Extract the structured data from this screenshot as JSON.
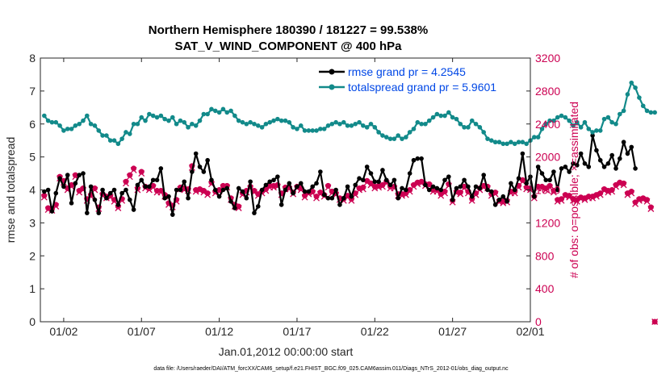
{
  "chart_data": {
    "type": "line",
    "title": "Northern Hemisphere 180390 / 181227 = 99.538%",
    "subtitle": "SAT_V_WIND_COMPONENT @ 400 hPa",
    "xlabel": "Jan.01,2012 00:00:00 start",
    "ylabel_left": "rmse and totalspread",
    "ylabel_right": "# of obs: o=possible; ×=assimilated",
    "xlim": [
      0.5,
      32
    ],
    "ylim_left": [
      0,
      8
    ],
    "ylim_right": [
      0,
      3200
    ],
    "x_ticks": [
      {
        "pos": 2,
        "label": "01/02"
      },
      {
        "pos": 7,
        "label": "01/07"
      },
      {
        "pos": 12,
        "label": "01/12"
      },
      {
        "pos": 17,
        "label": "01/17"
      },
      {
        "pos": 22,
        "label": "01/22"
      },
      {
        "pos": 27,
        "label": "01/27"
      },
      {
        "pos": 32,
        "label": "02/01"
      }
    ],
    "y_ticks_left": [
      "0",
      "1",
      "2",
      "3",
      "4",
      "5",
      "6",
      "7",
      "8"
    ],
    "y_ticks_right": [
      "0",
      "400",
      "800",
      "1200",
      "1600",
      "2000",
      "2400",
      "2800",
      "3200"
    ],
    "legend": [
      {
        "label": "rmse grand pr = 4.2545",
        "color": "#000000"
      },
      {
        "label": "totalspread grand pr = 5.9601",
        "color": "#128a8a"
      }
    ],
    "series": [
      {
        "name": "rmse",
        "axis": "left",
        "color": "#000000",
        "x_start": 0.75,
        "x_step": 0.25,
        "values": [
          3.95,
          4.0,
          3.35,
          3.9,
          4.35,
          4.1,
          4.45,
          3.6,
          4.2,
          4.45,
          4.5,
          3.3,
          4.1,
          3.7,
          3.3,
          4.0,
          3.75,
          3.9,
          4.0,
          3.55,
          3.9,
          4.0,
          3.7,
          3.4,
          4.15,
          4.3,
          4.1,
          4.1,
          4.3,
          4.3,
          4.65,
          3.75,
          3.8,
          3.25,
          4.0,
          4.0,
          4.25,
          3.75,
          4.55,
          5.1,
          4.7,
          4.55,
          4.9,
          4.3,
          4.0,
          3.8,
          4.0,
          4.05,
          3.65,
          3.45,
          4.05,
          3.95,
          3.75,
          4.25,
          3.3,
          3.5,
          4.0,
          4.15,
          4.25,
          4.3,
          4.4,
          3.55,
          4.0,
          4.2,
          3.9,
          4.1,
          4.2,
          3.95,
          3.95,
          4.1,
          4.2,
          4.55,
          3.85,
          3.75,
          3.75,
          4.0,
          3.55,
          3.75,
          4.1,
          3.8,
          4.15,
          4.35,
          4.3,
          4.7,
          4.5,
          4.25,
          4.25,
          4.6,
          4.3,
          4.15,
          4.3,
          3.75,
          4.05,
          4.0,
          4.5,
          4.9,
          4.95,
          4.95,
          4.15,
          4.0,
          4.1,
          4.05,
          4.0,
          4.3,
          4.4,
          3.7,
          4.05,
          4.1,
          4.3,
          4.1,
          3.8,
          4.1,
          4.05,
          4.45,
          4.0,
          3.95,
          3.55,
          3.7,
          3.8,
          3.65,
          4.2,
          4.0,
          4.35,
          5.1,
          4.2,
          4.4,
          3.8,
          4.7,
          4.5,
          4.3,
          4.3,
          4.55,
          4.0,
          4.65,
          4.7,
          4.55,
          4.8,
          4.75,
          5.1,
          4.8,
          4.7,
          5.65,
          5.2,
          4.9,
          4.7,
          4.8,
          5.05,
          4.65,
          4.95,
          5.45,
          5.1,
          5.3,
          4.65
        ]
      },
      {
        "name": "totalspread",
        "axis": "left",
        "color": "#128a8a",
        "x_start": 0.75,
        "x_step": 0.25,
        "values": [
          6.25,
          6.1,
          6.05,
          6.05,
          5.95,
          5.8,
          5.85,
          5.85,
          5.95,
          6.0,
          6.1,
          6.25,
          6.0,
          5.95,
          5.8,
          5.65,
          5.65,
          5.5,
          5.5,
          5.4,
          5.55,
          5.75,
          5.7,
          6.0,
          6.0,
          6.2,
          6.1,
          6.3,
          6.25,
          6.2,
          6.25,
          6.15,
          6.1,
          6.2,
          6.0,
          6.1,
          6.05,
          5.9,
          6.0,
          5.95,
          6.1,
          6.3,
          6.3,
          6.45,
          6.4,
          6.35,
          6.45,
          6.35,
          6.4,
          6.25,
          6.1,
          6.05,
          6.0,
          6.05,
          6.0,
          5.95,
          5.9,
          6.0,
          6.05,
          6.1,
          6.15,
          6.1,
          6.1,
          6.05,
          5.9,
          5.85,
          5.95,
          5.8,
          5.8,
          5.8,
          5.8,
          5.85,
          5.85,
          5.95,
          6.0,
          6.05,
          6.0,
          6.05,
          5.95,
          5.95,
          6.0,
          6.05,
          5.95,
          5.9,
          6.0,
          5.9,
          5.75,
          5.65,
          5.6,
          5.55,
          5.55,
          5.65,
          5.55,
          5.6,
          5.75,
          5.85,
          6.05,
          6.0,
          6.0,
          6.1,
          6.2,
          6.3,
          6.25,
          6.25,
          6.35,
          6.2,
          6.15,
          6.0,
          5.9,
          5.9,
          6.1,
          6.0,
          5.9,
          5.75,
          5.55,
          5.5,
          5.45,
          5.45,
          5.4,
          5.4,
          5.45,
          5.4,
          5.45,
          5.45,
          5.4,
          5.5,
          5.6,
          5.6,
          5.85,
          6.0,
          6.1,
          6.1,
          6.2,
          6.25,
          6.2,
          6.1,
          5.95,
          6.05,
          5.9,
          6.05,
          5.85,
          5.75,
          5.8,
          5.8,
          6.15,
          6.2,
          6.05,
          6.0,
          6.3,
          6.4,
          6.9,
          7.25,
          7.1,
          6.8,
          6.55,
          6.4,
          6.35,
          6.35
        ]
      },
      {
        "name": "obs possible",
        "axis": "right",
        "marker": "o",
        "color": "#cc0052",
        "x_start": 0.75,
        "x_step": 0.25,
        "values": [
          1530,
          1380,
          1370,
          1420,
          1760,
          1710,
          1620,
          1660,
          1780,
          1590,
          1620,
          1490,
          1540,
          1620,
          1390,
          1550,
          1520,
          1530,
          1480,
          1400,
          1490,
          1700,
          1780,
          1860,
          1620,
          1820,
          1640,
          1620,
          1650,
          1590,
          1590,
          1540,
          1440,
          1410,
          1480,
          1630,
          1620,
          1610,
          1890,
          1600,
          1610,
          1590,
          1560,
          1690,
          1580,
          1600,
          1650,
          1650,
          1500,
          1420,
          1400,
          1560,
          1590,
          1640,
          1590,
          1550,
          1580,
          1610,
          1650,
          1650,
          1660,
          1560,
          1630,
          1630,
          1570,
          1640,
          1620,
          1530,
          1570,
          1580,
          1520,
          1570,
          1540,
          1650,
          1580,
          1560,
          1500,
          1490,
          1530,
          1490,
          1560,
          1620,
          1630,
          1710,
          1680,
          1640,
          1650,
          1660,
          1700,
          1640,
          1640,
          1550,
          1550,
          1560,
          1600,
          1660,
          1690,
          1700,
          1670,
          1670,
          1600,
          1600,
          1550,
          1580,
          1670,
          1470,
          1580,
          1570,
          1640,
          1580,
          1490,
          1560,
          1620,
          1650,
          1640,
          1550,
          1570,
          1470,
          1460,
          1470,
          1580,
          1580,
          1650,
          1720,
          1630,
          1620,
          1520,
          1640,
          1640,
          1620,
          1650,
          1590,
          1480,
          1490,
          1540,
          1530,
          1490,
          1480,
          1510,
          1500,
          1520,
          1520,
          1540,
          1560,
          1610,
          1590,
          1600,
          1660,
          1690,
          1680,
          1560,
          1580,
          1450,
          1490,
          1500,
          1480,
          1390,
          0
        ]
      },
      {
        "name": "obs assimilated",
        "axis": "right",
        "marker": "x",
        "color": "#cc0052",
        "x_start": 0.75,
        "x_step": 0.25,
        "values": [
          1510,
          1360,
          1350,
          1400,
          1740,
          1690,
          1600,
          1640,
          1760,
          1570,
          1600,
          1470,
          1520,
          1600,
          1370,
          1530,
          1500,
          1510,
          1460,
          1380,
          1470,
          1680,
          1760,
          1840,
          1600,
          1800,
          1620,
          1600,
          1630,
          1570,
          1570,
          1520,
          1420,
          1390,
          1460,
          1610,
          1600,
          1590,
          1870,
          1580,
          1590,
          1570,
          1540,
          1670,
          1560,
          1580,
          1630,
          1630,
          1480,
          1400,
          1380,
          1540,
          1570,
          1620,
          1570,
          1530,
          1560,
          1590,
          1630,
          1630,
          1640,
          1540,
          1610,
          1610,
          1550,
          1620,
          1600,
          1510,
          1550,
          1560,
          1500,
          1550,
          1520,
          1630,
          1560,
          1540,
          1480,
          1470,
          1510,
          1470,
          1540,
          1600,
          1610,
          1690,
          1660,
          1620,
          1630,
          1640,
          1680,
          1620,
          1620,
          1530,
          1530,
          1540,
          1580,
          1640,
          1670,
          1680,
          1650,
          1650,
          1580,
          1580,
          1530,
          1560,
          1650,
          1450,
          1560,
          1550,
          1620,
          1560,
          1470,
          1540,
          1600,
          1630,
          1620,
          1530,
          1550,
          1450,
          1440,
          1450,
          1560,
          1560,
          1630,
          1700,
          1610,
          1600,
          1500,
          1620,
          1620,
          1600,
          1630,
          1570,
          1460,
          1470,
          1520,
          1510,
          1470,
          1460,
          1490,
          1480,
          1500,
          1500,
          1520,
          1540,
          1590,
          1570,
          1580,
          1640,
          1670,
          1660,
          1540,
          1560,
          1430,
          1470,
          1480,
          1460,
          1370,
          0
        ]
      }
    ],
    "grid": false,
    "legend_position": "top-right",
    "footer": "data file: /Users/raeder/DAI/ATM_forcXX/CAM6_setup/f.e21.FHIST_BGC.f09_025.CAM6assim.011/Diags_NTrS_2012-01/obs_diag_output.nc"
  }
}
